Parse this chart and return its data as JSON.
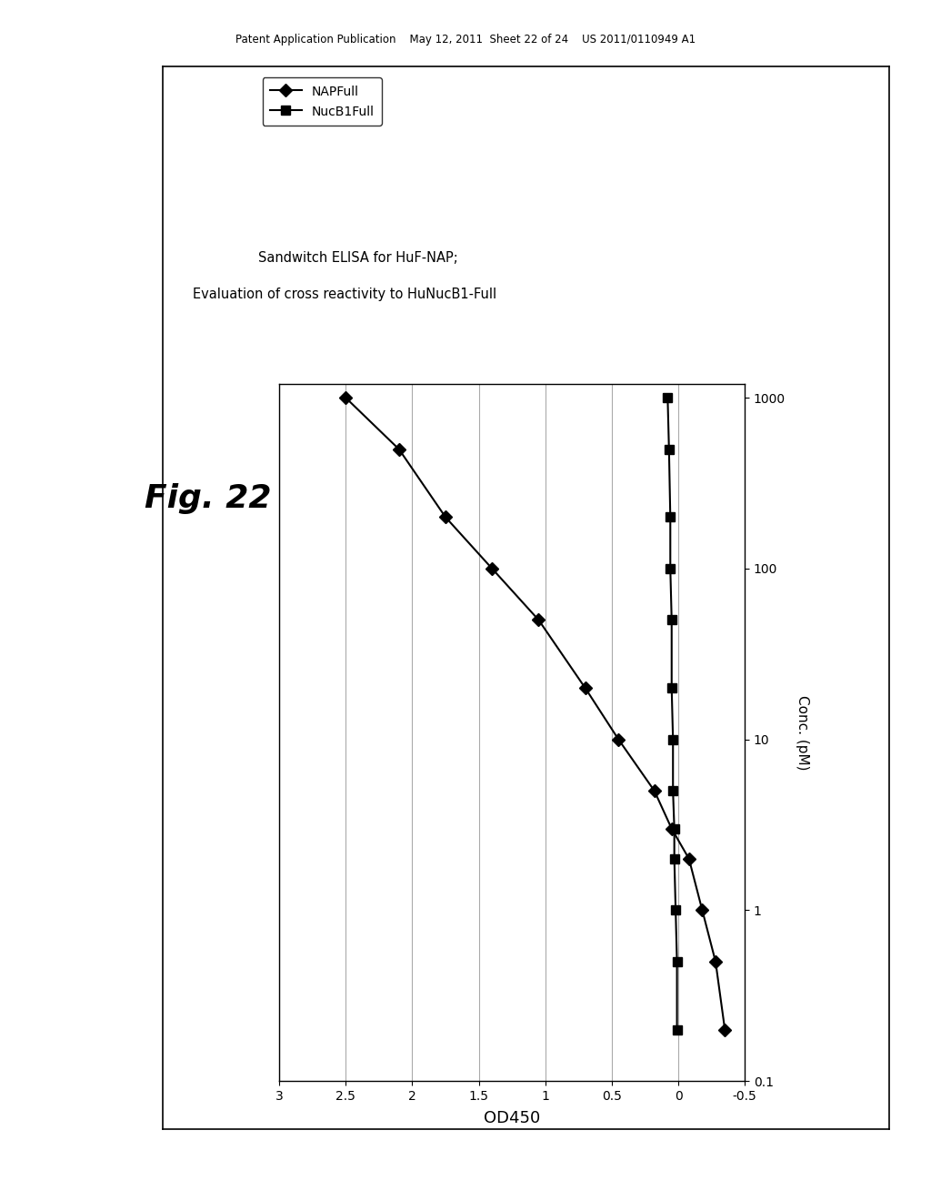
{
  "title_line1": "Sandwitch ELISA for HuF-NAP;",
  "title_line2": "Evaluation of cross reactivity to HuNucB1-Full",
  "fig22_label": "Fig. 22",
  "patent_header": "Patent Application Publication    May 12, 2011  Sheet 22 of 24    US 2011/0110949 A1",
  "xlabel": "OD450",
  "ylabel": "Conc. (pM)",
  "napfull_name": "NAPFull",
  "nucb1full_name": "NucB1Full",
  "napfull_od450": [
    2.5,
    2.1,
    1.75,
    1.4,
    1.05,
    0.7,
    0.45,
    0.18,
    0.05,
    -0.08,
    -0.18,
    -0.28,
    -0.35
  ],
  "napfull_conc": [
    1000,
    500,
    200,
    100,
    50,
    20,
    10,
    5,
    3,
    2,
    1,
    0.5,
    0.2
  ],
  "nucb1full_od450": [
    0.08,
    0.07,
    0.06,
    0.06,
    0.05,
    0.05,
    0.04,
    0.04,
    0.03,
    0.03,
    0.02,
    0.01,
    0.01
  ],
  "nucb1full_conc": [
    1000,
    500,
    200,
    100,
    50,
    20,
    10,
    5,
    3,
    2,
    1,
    0.5,
    0.2
  ],
  "xlim": [
    3.0,
    -0.5
  ],
  "xticks": [
    3.0,
    2.5,
    2.0,
    1.5,
    1.0,
    0.5,
    0.0,
    -0.5
  ],
  "xticklabels": [
    "3",
    "2.5",
    "2",
    "1.5",
    "1",
    "0.5",
    "0",
    "-0.5"
  ],
  "ylim_log": [
    0.1,
    1200
  ],
  "ytick_vals": [
    0.1,
    1,
    10,
    100,
    1000
  ],
  "ytick_labels": [
    "0.1",
    "1",
    "10",
    "100",
    "1000"
  ],
  "bg_color": "#ffffff",
  "plot_bg_color": "#ffffff",
  "grid_color": "#aaaaaa",
  "line_color": "#000000",
  "marker_size_diamond": 7,
  "marker_size_square": 7
}
